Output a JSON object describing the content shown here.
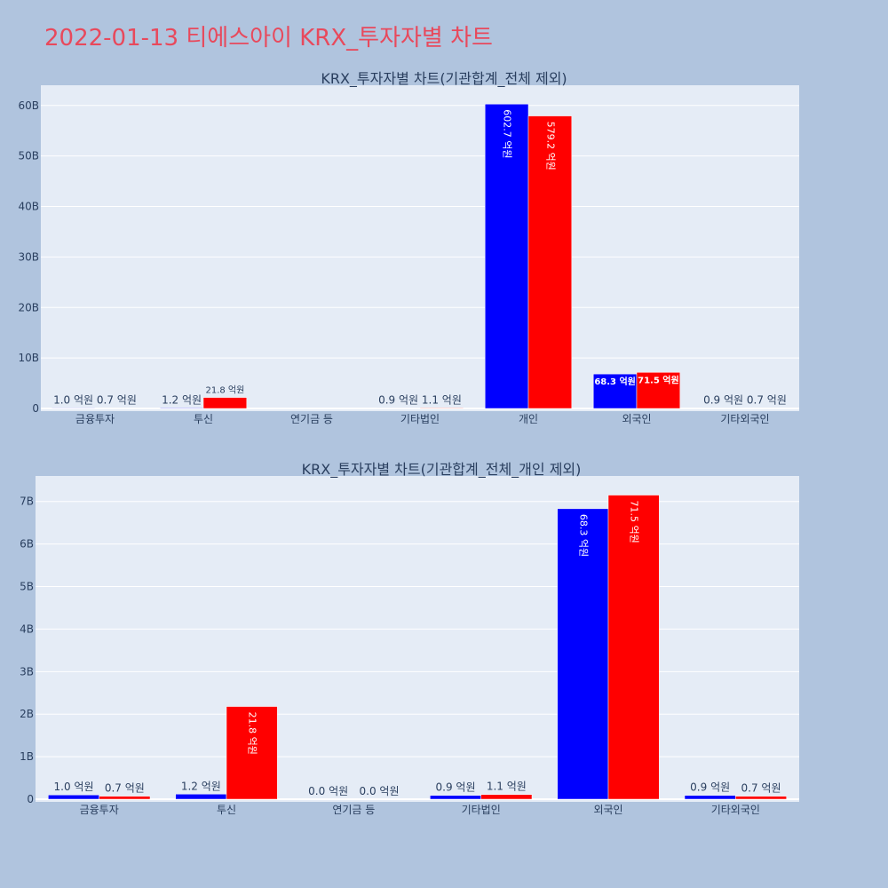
{
  "page": {
    "title": "2022-01-13 티에스아이 KRX_투자자별 차트"
  },
  "colors": {
    "buy": "#0000ff",
    "sell": "#ff0000",
    "plot_bg": "#e5ecf6",
    "page_bg": "#b0c4de",
    "title": "#e8495c"
  },
  "chart_data": [
    {
      "type": "bar",
      "title": "KRX_투자자별 차트(기관합계_전체 제외)",
      "categories": [
        "금융투자",
        "투신",
        "연기금 등",
        "기타법인",
        "개인",
        "외국인",
        "기타외국인"
      ],
      "series": [
        {
          "color": "#0000ff",
          "values": [
            0.1,
            0.12,
            0,
            0.09,
            60.27,
            6.83,
            0.09
          ],
          "labels": [
            "1.0 억원",
            "1.2 억원",
            "",
            "0.9 억원",
            "602.7 억원",
            "68.3 억원",
            "0.9 억원"
          ]
        },
        {
          "color": "#ff0000",
          "values": [
            0.07,
            2.18,
            0,
            0.11,
            57.92,
            7.15,
            0.07
          ],
          "labels": [
            "0.7 억원",
            "21.8 억원",
            "",
            "1.1 억원",
            "579.2 억원",
            "71.5 억원",
            "0.7 억원"
          ]
        }
      ],
      "yunit": "B",
      "ylim": [
        0,
        64
      ],
      "yticks": [
        0,
        10,
        20,
        30,
        40,
        50,
        60
      ],
      "yticklabels": [
        "0",
        "10B",
        "20B",
        "30B",
        "40B",
        "50B",
        "60B"
      ],
      "grid": true
    },
    {
      "type": "bar",
      "title": "KRX_투자자별 차트(기관합계_전체_개인 제외)",
      "categories": [
        "금융투자",
        "투신",
        "연기금 등",
        "기타법인",
        "외국인",
        "기타외국인"
      ],
      "series": [
        {
          "color": "#0000ff",
          "values": [
            0.1,
            0.12,
            0,
            0.09,
            6.83,
            0.09
          ],
          "labels": [
            "1.0 억원",
            "1.2 억원",
            "0.0 억원",
            "0.9 억원",
            "68.3 억원",
            "0.9 억원"
          ]
        },
        {
          "color": "#ff0000",
          "values": [
            0.07,
            2.18,
            0,
            0.11,
            7.15,
            0.07
          ],
          "labels": [
            "0.7 억원",
            "21.8 억원",
            "0.0 억원",
            "1.1 억원",
            "71.5 억원",
            "0.7 억원"
          ]
        }
      ],
      "yunit": "B",
      "ylim": [
        0,
        7.6
      ],
      "yticks": [
        0,
        1,
        2,
        3,
        4,
        5,
        6,
        7
      ],
      "yticklabels": [
        "0",
        "1B",
        "2B",
        "3B",
        "4B",
        "5B",
        "6B",
        "7B"
      ],
      "grid": true
    }
  ]
}
